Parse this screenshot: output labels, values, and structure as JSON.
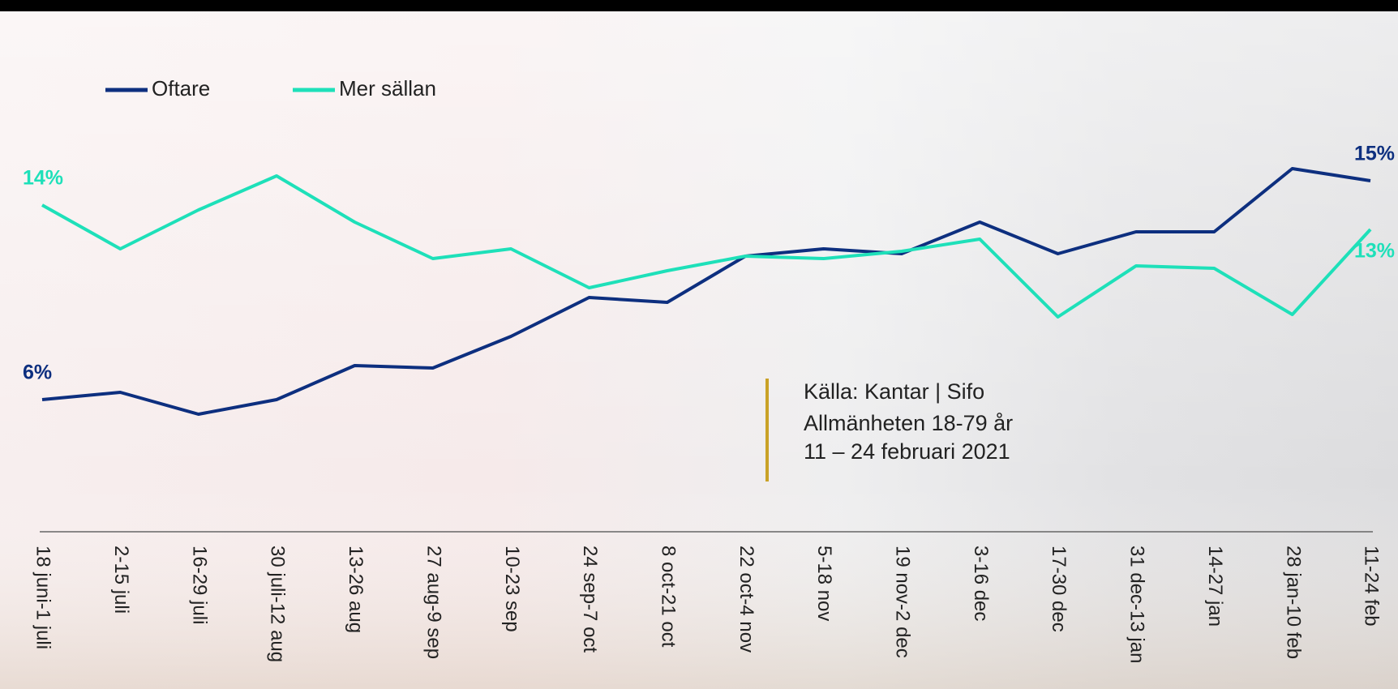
{
  "chart_data": {
    "type": "line",
    "categories": [
      "18 juni-1 juli",
      "2-15 juli",
      "16-29 juli",
      "30 juli-12 aug",
      "13-26 aug",
      "27 aug-9 sep",
      "10-23 sep",
      "24 sep-7 oct",
      "8 oct-21 oct",
      "22 oct-4 nov",
      "5-18 nov",
      "19 nov-2 dec",
      "3-16 dec",
      "17-30 dec",
      "31 dec-13 jan",
      "14-27 jan",
      "28 jan-10 feb",
      "11-24 feb"
    ],
    "series": [
      {
        "name": "Oftare",
        "color": "#0d2f7f",
        "values": [
          6,
          6.3,
          5.4,
          6.0,
          7.4,
          7.3,
          8.6,
          10.2,
          10.0,
          11.9,
          12.2,
          12.0,
          13.3,
          12.0,
          12.9,
          12.9,
          15.5,
          15
        ],
        "value_labels": [
          "6%",
          null,
          null,
          null,
          null,
          null,
          null,
          null,
          null,
          null,
          null,
          null,
          null,
          null,
          null,
          null,
          null,
          "15%"
        ]
      },
      {
        "name": "Mer sällan",
        "color": "#1ee0b9",
        "values": [
          14,
          12.2,
          13.8,
          15.2,
          13.3,
          11.8,
          12.2,
          10.6,
          11.3,
          11.9,
          11.8,
          12.1,
          12.6,
          9.4,
          11.5,
          11.4,
          9.5,
          13
        ],
        "value_labels": [
          "14%",
          null,
          null,
          null,
          null,
          null,
          null,
          null,
          null,
          null,
          null,
          null,
          null,
          null,
          null,
          null,
          null,
          "13%"
        ]
      }
    ],
    "annotations": [
      "Källa: Kantar | Sifo",
      "Allmänheten 18-79 år",
      "11 – 24 februari 2021"
    ]
  }
}
